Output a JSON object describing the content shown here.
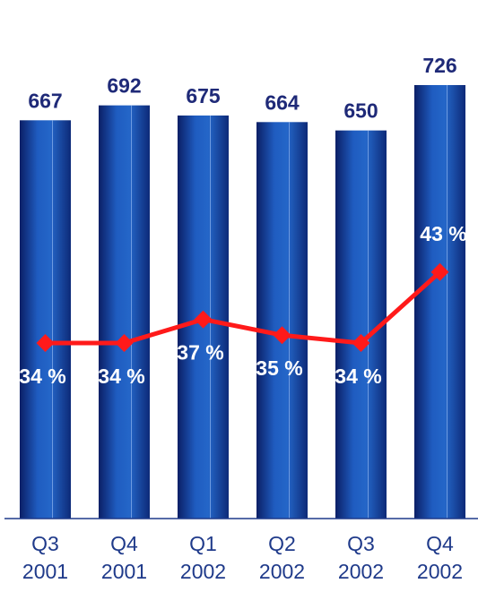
{
  "chart_data": {
    "type": "bar",
    "categories": [
      [
        "Q3",
        "2001"
      ],
      [
        "Q4",
        "2001"
      ],
      [
        "Q1",
        "2002"
      ],
      [
        "Q2",
        "2002"
      ],
      [
        "Q3",
        "2002"
      ],
      [
        "Q4",
        "2002"
      ]
    ],
    "series": [
      {
        "type": "bar",
        "values": [
          667,
          692,
          675,
          664,
          650,
          726
        ],
        "labels": [
          "667",
          "692",
          "675",
          "664",
          "650",
          "726"
        ],
        "color": "#1a4fa8"
      },
      {
        "type": "line",
        "values": [
          34,
          34,
          37,
          35,
          34,
          43
        ],
        "labels": [
          "34 %",
          "34 %",
          "37 %",
          "35 %",
          "34 %",
          "43 %"
        ],
        "color": "#ff1a1a"
      }
    ],
    "axis_color": "#1f3a8a",
    "grid": false
  }
}
